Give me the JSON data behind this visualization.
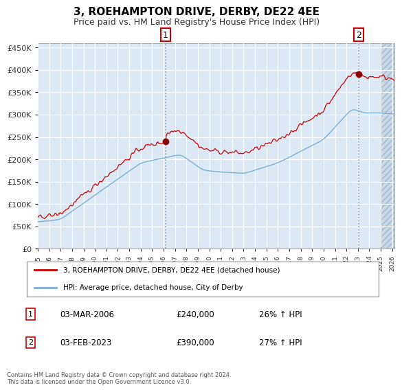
{
  "title": "3, ROEHAMPTON DRIVE, DERBY, DE22 4EE",
  "subtitle": "Price paid vs. HM Land Registry's House Price Index (HPI)",
  "ylim": [
    0,
    460000
  ],
  "yticks": [
    0,
    50000,
    100000,
    150000,
    200000,
    250000,
    300000,
    350000,
    400000,
    450000
  ],
  "xlim_start": 1995.0,
  "xlim_end": 2026.2,
  "hatch_start": 2025.0,
  "legend_line1": "3, ROEHAMPTON DRIVE, DERBY, DE22 4EE (detached house)",
  "legend_line2": "HPI: Average price, detached house, City of Derby",
  "sale1_label": "1",
  "sale1_date": "03-MAR-2006",
  "sale1_price": "£240,000",
  "sale1_hpi": "26% ↑ HPI",
  "sale1_year": 2006.17,
  "sale1_value": 240000,
  "sale2_label": "2",
  "sale2_date": "03-FEB-2023",
  "sale2_price": "£390,000",
  "sale2_hpi": "27% ↑ HPI",
  "sale2_year": 2023.08,
  "sale2_value": 390000,
  "footer": "Contains HM Land Registry data © Crown copyright and database right 2024.\nThis data is licensed under the Open Government Licence v3.0.",
  "plot_bg": "#dce9f5",
  "hatch_bg": "#c8d8e8",
  "grid_color": "#ffffff",
  "line1_color": "#cc0000",
  "line2_color": "#7bafd4",
  "dot_color": "#8b0000",
  "vline_color": "#bbbbbb",
  "title_fontsize": 11,
  "subtitle_fontsize": 9
}
